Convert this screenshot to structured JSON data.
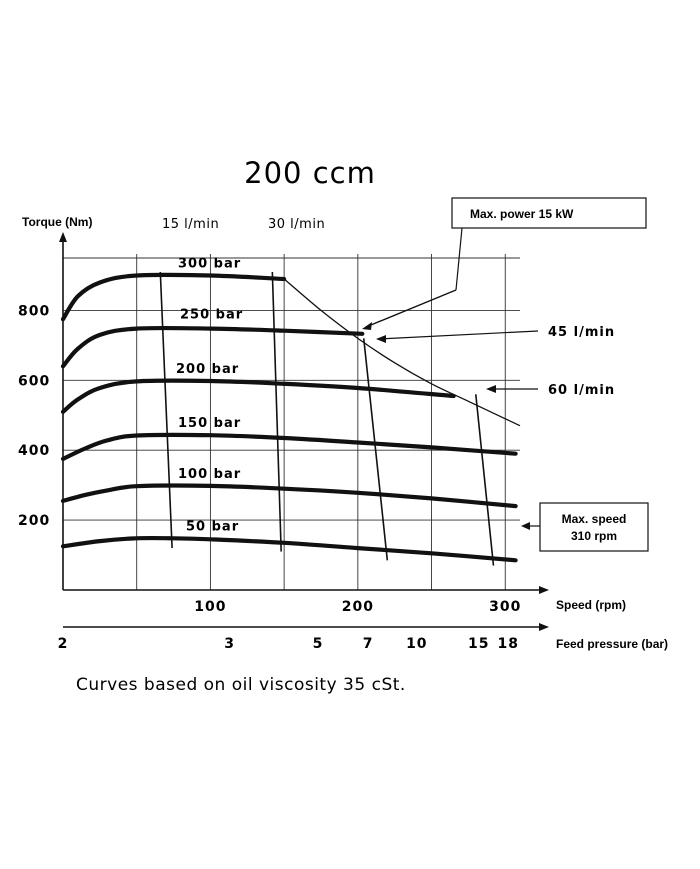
{
  "chart_data": {
    "type": "line",
    "title": "200 ccm",
    "ylabel": "Torque (Nm)",
    "xlabel": "Speed (rpm)",
    "x2label": "Feed pressure (bar)",
    "xlim": [
      0,
      310
    ],
    "ylim": [
      0,
      950
    ],
    "grid": true,
    "y_ticks": [
      200,
      400,
      600,
      800
    ],
    "x_ticks": [
      100,
      200,
      300
    ],
    "x_grid": [
      50,
      100,
      150,
      200,
      250,
      300
    ],
    "feed_pressure_ticks": [
      {
        "label": "2",
        "x": 0
      },
      {
        "label": "3",
        "x": 113
      },
      {
        "label": "5",
        "x": 173
      },
      {
        "label": "7",
        "x": 207
      },
      {
        "label": "10",
        "x": 240
      },
      {
        "label": "15",
        "x": 282
      },
      {
        "label": "18",
        "x": 302
      }
    ],
    "series": [
      {
        "name": "300 bar",
        "x": [
          0,
          10,
          25,
          50,
          100,
          150
        ],
        "y": [
          775,
          840,
          880,
          900,
          900,
          890
        ]
      },
      {
        "name": "250 bar",
        "x": [
          0,
          10,
          25,
          50,
          100,
          150,
          203
        ],
        "y": [
          640,
          690,
          730,
          748,
          748,
          742,
          733
        ]
      },
      {
        "name": "200 bar",
        "x": [
          0,
          10,
          25,
          50,
          100,
          150,
          200,
          265
        ],
        "y": [
          510,
          545,
          578,
          597,
          598,
          590,
          578,
          555
        ]
      },
      {
        "name": "150 bar",
        "x": [
          0,
          15,
          30,
          50,
          100,
          150,
          200,
          250,
          307
        ],
        "y": [
          375,
          405,
          428,
          442,
          443,
          435,
          422,
          408,
          390
        ]
      },
      {
        "name": "100 bar",
        "x": [
          0,
          15,
          30,
          50,
          100,
          150,
          200,
          250,
          307
        ],
        "y": [
          255,
          272,
          285,
          297,
          298,
          290,
          278,
          262,
          240
        ]
      },
      {
        "name": "50 bar",
        "x": [
          0,
          25,
          50,
          75,
          100,
          150,
          200,
          250,
          307
        ],
        "y": [
          125,
          140,
          148,
          148,
          145,
          135,
          120,
          105,
          85
        ]
      }
    ],
    "flow_lines": [
      {
        "name": "15 l/min",
        "x": [
          66,
          74
        ],
        "y": [
          910,
          120
        ]
      },
      {
        "name": "30 l/min",
        "x": [
          142,
          148
        ],
        "y": [
          910,
          110
        ]
      },
      {
        "name": "45 l/min",
        "x": [
          204,
          220
        ],
        "y": [
          720,
          85
        ]
      },
      {
        "name": "60 l/min",
        "x": [
          280,
          292
        ],
        "y": [
          560,
          70
        ]
      }
    ],
    "max_power_curve": {
      "x": [
        150,
        175,
        200,
        225,
        250,
        275,
        300,
        310
      ],
      "y": [
        890,
        800,
        720,
        650,
        590,
        540,
        490,
        470
      ]
    },
    "annotations": {
      "max_power": "Max. power 15 kW",
      "max_speed_line1": "Max. speed",
      "max_speed_line2": "310 rpm",
      "flow_45": "45 l/min",
      "flow_60": "60 l/min"
    },
    "caption": "Curves based on oil viscosity 35 cSt."
  }
}
